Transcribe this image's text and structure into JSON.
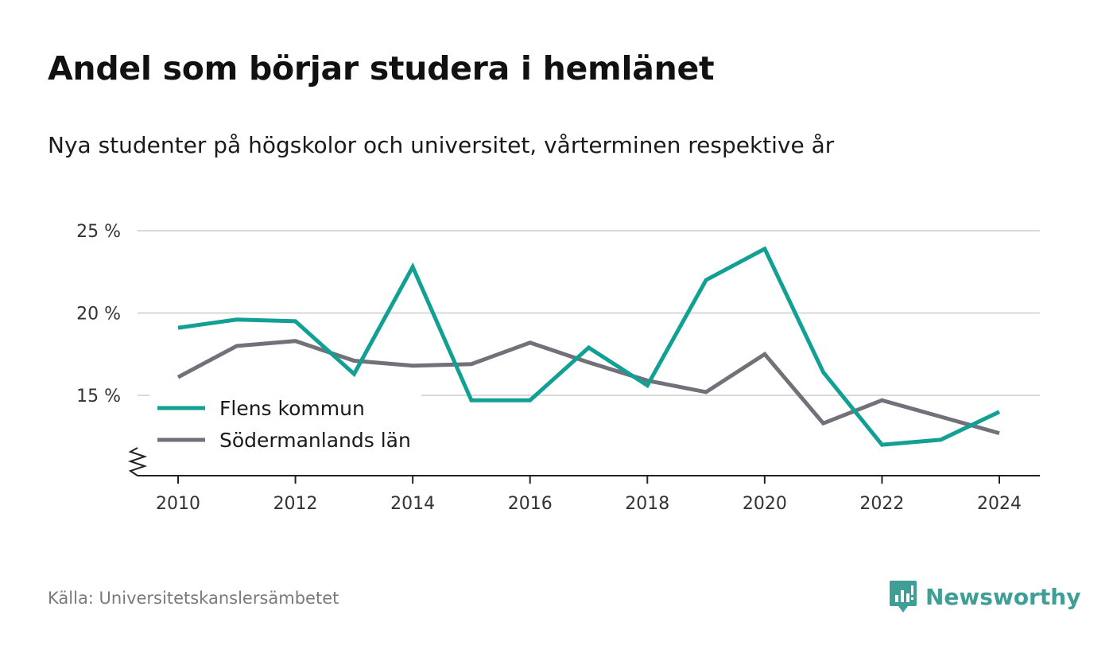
{
  "title": "Andel som börjar studera i hemlänet",
  "subtitle": "Nya studenter på högskolor och universitet, vårterminen respektive år",
  "source": "Källa: Universitetskanslersämbetet",
  "brand": {
    "name": "Newsworthy",
    "icon": "newsworthy-logo-icon"
  },
  "chart_data": {
    "type": "line",
    "x": [
      2010,
      2011,
      2012,
      2013,
      2014,
      2015,
      2016,
      2017,
      2018,
      2019,
      2020,
      2021,
      2022,
      2023,
      2024
    ],
    "xticks": [
      2010,
      2012,
      2014,
      2016,
      2018,
      2020,
      2022,
      2024
    ],
    "yticks": [
      15,
      20,
      25
    ],
    "ytick_labels": [
      "15 %",
      "20 %",
      "25 %"
    ],
    "ylim": [
      10,
      25
    ],
    "y_axis_break": true,
    "grid": true,
    "legend_position": "bottom-left",
    "series": [
      {
        "name": "Flens kommun",
        "color": "#12a094",
        "values": [
          19.1,
          19.6,
          19.5,
          16.3,
          22.8,
          14.7,
          14.7,
          17.9,
          15.6,
          22.0,
          23.9,
          16.4,
          12.0,
          12.3,
          14.0
        ]
      },
      {
        "name": "Södermanlands län",
        "color": "#727079",
        "values": [
          16.1,
          18.0,
          18.3,
          17.1,
          16.8,
          16.9,
          18.2,
          17.0,
          15.9,
          15.2,
          17.5,
          13.3,
          14.7,
          13.7,
          12.7
        ]
      }
    ]
  }
}
